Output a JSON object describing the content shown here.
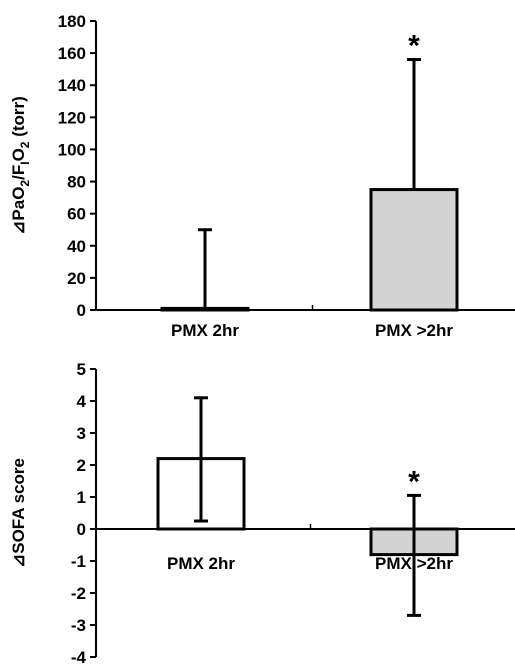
{
  "chart_data": [
    {
      "type": "bar",
      "categories": [
        "PMX 2hr",
        "PMX >2hr"
      ],
      "values": [
        1,
        75
      ],
      "error_upper": [
        50,
        156
      ],
      "bar_colors": [
        "#ffffff",
        "#d3d3d3"
      ],
      "significance": [
        "",
        "*"
      ],
      "title": "",
      "xlabel": "",
      "ylabel": "⊿PaO2/FiO2 (torr)",
      "ylabel_parts": {
        "pre": "⊿PaO",
        "sub1": "2",
        "mid": "/F",
        "sub2": "I",
        "mid2": "O",
        "sub3": "2",
        "post": " (torr)"
      },
      "ylim": [
        0,
        180
      ],
      "yticks": [
        0,
        20,
        40,
        60,
        80,
        100,
        120,
        140,
        160,
        180
      ],
      "grid": false,
      "legend": "none"
    },
    {
      "type": "bar",
      "categories": [
        "PMX 2hr",
        "PMX >2hr"
      ],
      "values": [
        2.2,
        -0.8
      ],
      "error_upper": [
        4.1,
        1.05
      ],
      "error_lower": [
        0.25,
        -2.7
      ],
      "bar_colors": [
        "#ffffff",
        "#d3d3d3"
      ],
      "significance": [
        "",
        "*"
      ],
      "title": "",
      "xlabel": "",
      "ylabel": "⊿SOFA score",
      "ylim": [
        -4,
        5
      ],
      "yticks": [
        -4,
        -3,
        -2,
        -1,
        0,
        1,
        2,
        3,
        4,
        5
      ],
      "grid": false,
      "legend": "none"
    }
  ]
}
